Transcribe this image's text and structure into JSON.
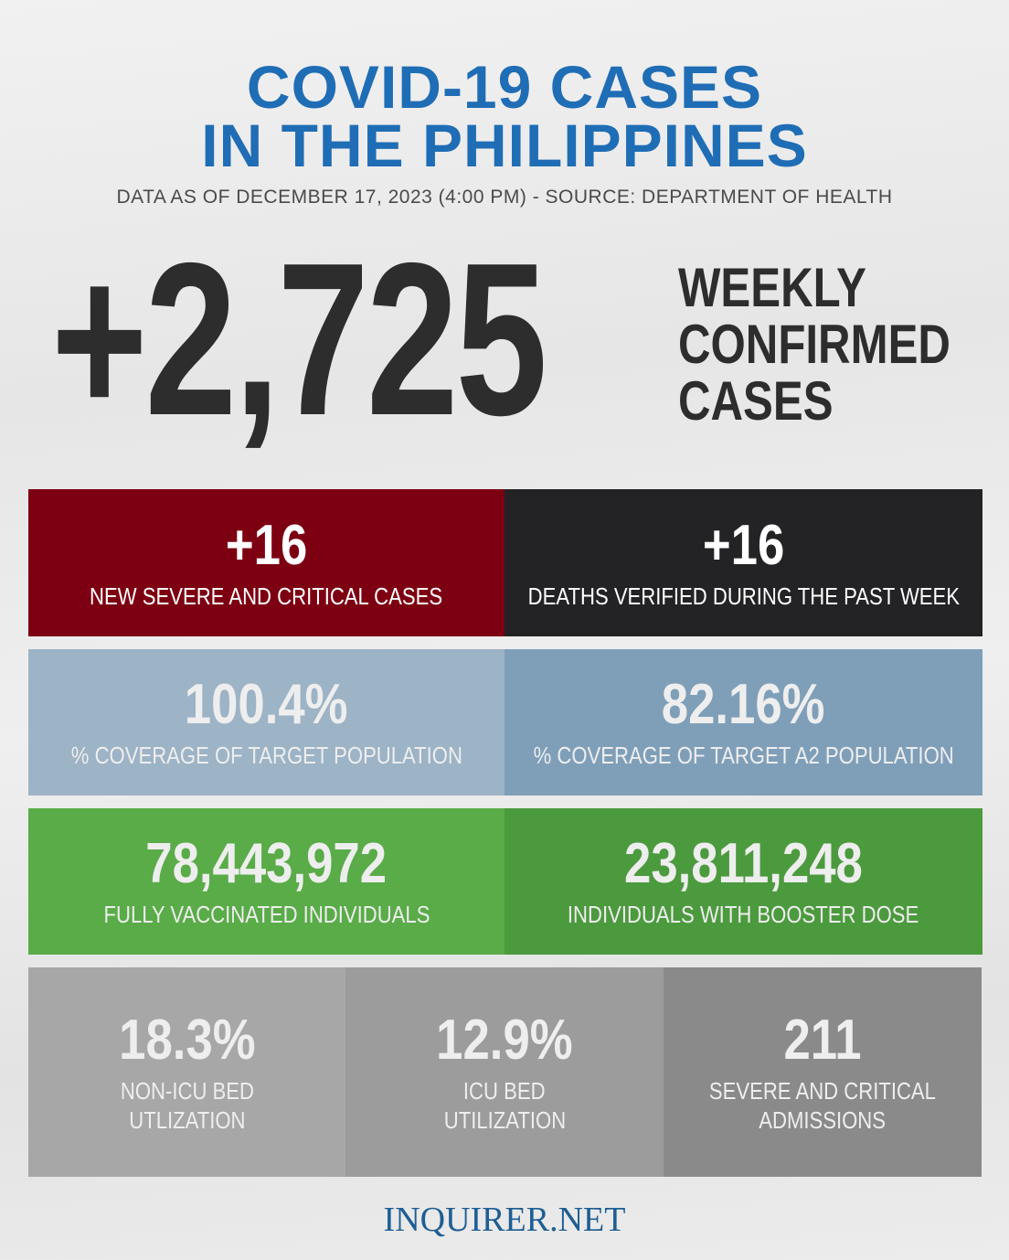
{
  "header": {
    "title_line1": "COVID-19 CASES",
    "title_line2": "IN THE PHILIPPINES",
    "subtitle": "DATA AS OF DECEMBER 17, 2023 (4:00 PM) - SOURCE: DEPARTMENT OF HEALTH"
  },
  "headline": {
    "value": "+2,725",
    "label_lines": [
      "WEEKLY",
      "CONFIRMED",
      "CASES"
    ]
  },
  "stats": {
    "severe": {
      "value": "+16",
      "label": "NEW SEVERE AND CRITICAL CASES",
      "color": "#7c0012"
    },
    "deaths": {
      "value": "+16",
      "label": "DEATHS VERIFIED DURING THE PAST WEEK",
      "color": "#232325"
    },
    "coverage": {
      "value": "100.4%",
      "label": "% COVERAGE OF TARGET POPULATION",
      "color": "#9db3c6"
    },
    "coverage_a2": {
      "value": "82.16%",
      "label": "% COVERAGE OF TARGET A2 POPULATION",
      "color": "#7f9fb9"
    },
    "vaccinated": {
      "value": "78,443,972",
      "label": "FULLY VACCINATED INDIVIDUALS",
      "color": "#59ac48"
    },
    "booster": {
      "value": "23,811,248",
      "label": "INDIVIDUALS WITH BOOSTER DOSE",
      "color": "#4c9a3e"
    },
    "non_icu": {
      "value": "18.3%",
      "label_lines": [
        "NON-ICU BED",
        "UTLIZATION"
      ],
      "color": "#a7a7a7"
    },
    "icu": {
      "value": "12.9%",
      "label_lines": [
        "ICU BED",
        "UTILIZATION"
      ],
      "color": "#9c9c9c"
    },
    "admissions": {
      "value": "211",
      "label_lines": [
        "SEVERE AND CRITICAL",
        "ADMISSIONS"
      ],
      "color": "#8a8a8a"
    }
  },
  "footer": {
    "brand": "INQUIRER.NET"
  }
}
